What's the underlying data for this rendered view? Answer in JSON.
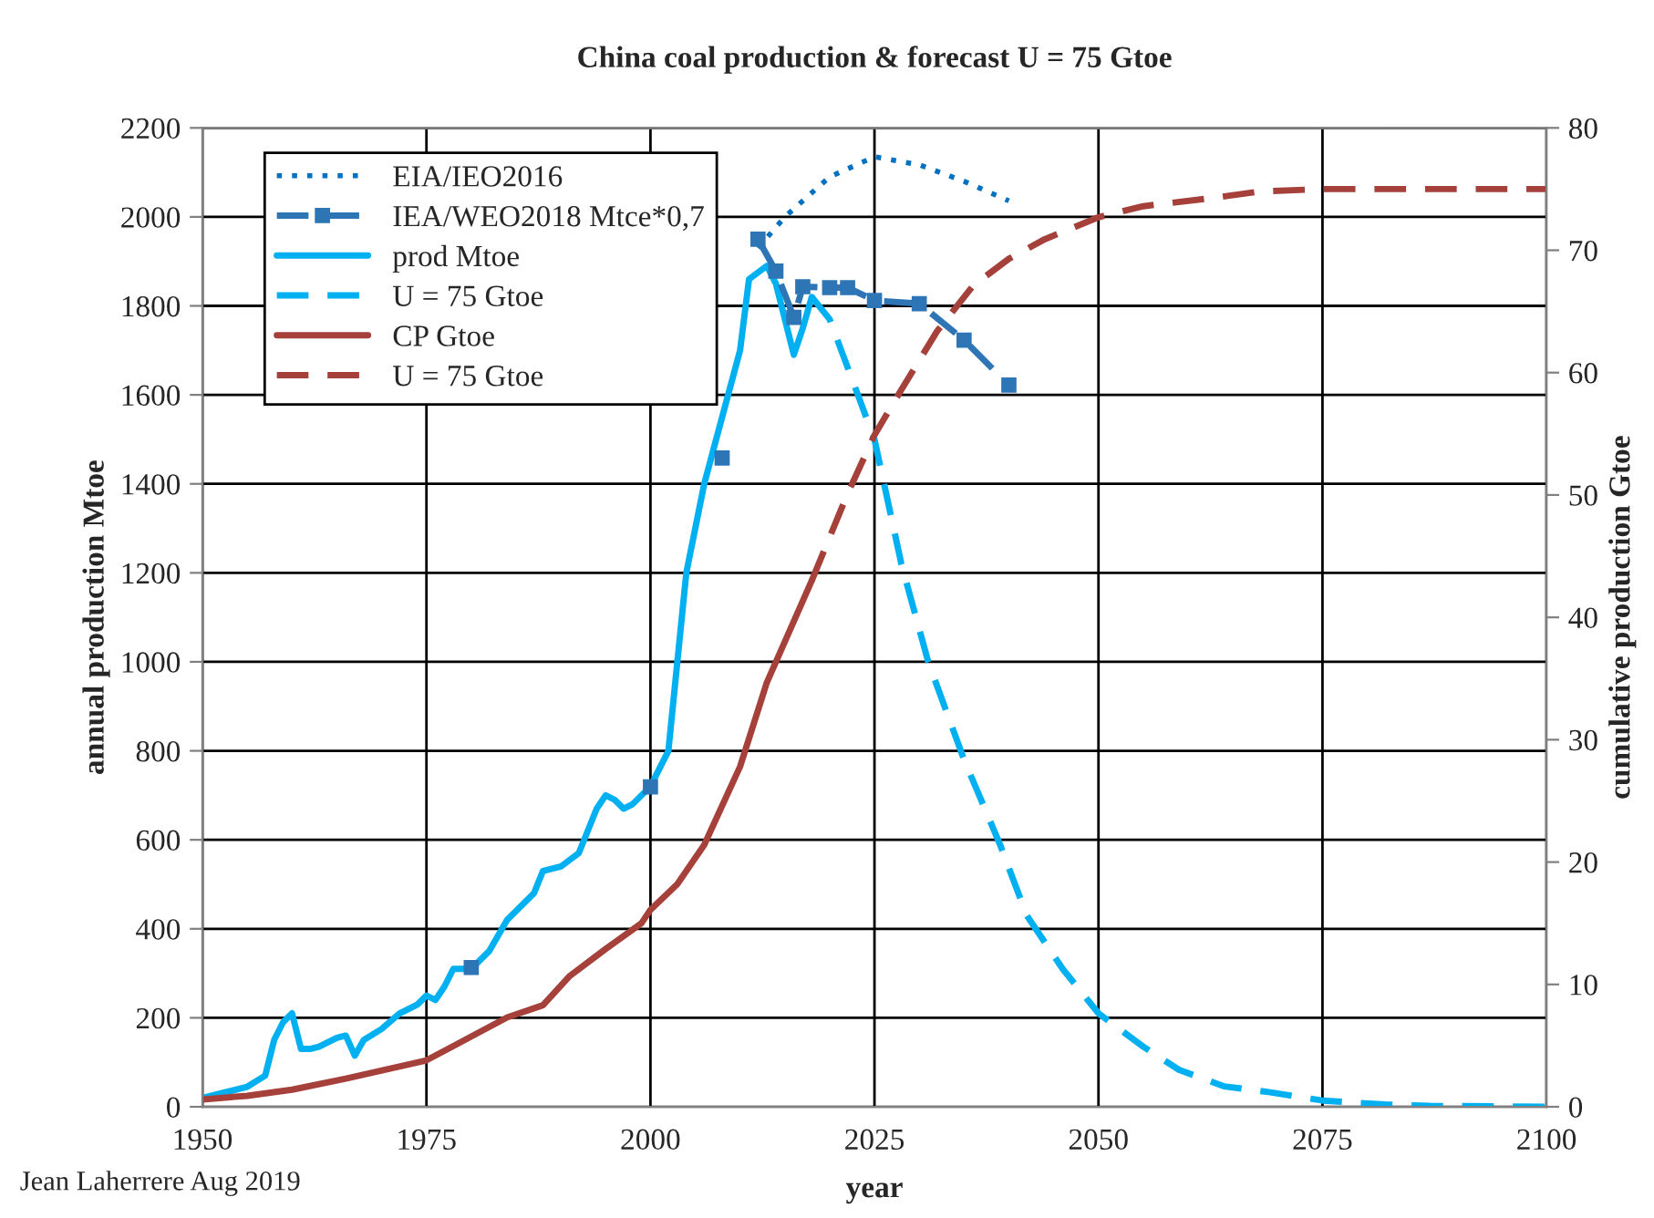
{
  "chart_data": {
    "type": "line",
    "title": "China coal production & forecast U = 75 Gtoe",
    "xlabel": "year",
    "ylabel": "annual production Mtoe",
    "y2label": "cumulative production Gtoe",
    "annotations": [
      "Jean Laherrere Aug 2019"
    ],
    "xlim": [
      1950,
      2100
    ],
    "xticks": [
      1950,
      1975,
      2000,
      2025,
      2050,
      2075,
      2100
    ],
    "ylim": [
      0,
      2200
    ],
    "yticks": [
      0,
      200,
      400,
      600,
      800,
      1000,
      1200,
      1400,
      1600,
      1800,
      2000,
      2200
    ],
    "y2lim": [
      0,
      80
    ],
    "y2ticks": [
      0,
      10,
      20,
      30,
      40,
      50,
      60,
      70,
      80
    ],
    "grid": true,
    "legend": "top left",
    "series": [
      {
        "name": "EIA/IEO2016",
        "color": "#0070c0",
        "line_style": "dotted",
        "marker": "none",
        "x": [
          2012,
          2015,
          2020,
          2025,
          2030,
          2035,
          2040
        ],
        "values": [
          1930,
          2000,
          2090,
          2135,
          2117,
          2080,
          2036
        ]
      },
      {
        "name": "IEA/WEO2018 Mtce*0,7",
        "color": "#2e75b6",
        "line_style": "dashed",
        "marker": "square",
        "x": [
          1980,
          1990,
          2000,
          2005,
          2008,
          2010,
          2012,
          2014,
          2016,
          2017,
          2020,
          2022,
          2025,
          2030,
          2035,
          2040
        ],
        "values": [
          313,
          null,
          719,
          null,
          1458,
          null,
          1950,
          1878,
          1774,
          1843,
          1841,
          1841,
          1812,
          1805,
          1723,
          1622
        ]
      },
      {
        "name": "prod Mtoe",
        "color": "#00b0f0",
        "line_style": "solid",
        "marker": "none",
        "x": [
          1950,
          1952,
          1955,
          1957,
          1958,
          1959,
          1960,
          1961,
          1962,
          1963,
          1965,
          1966,
          1967,
          1968,
          1970,
          1972,
          1974,
          1975,
          1976,
          1977,
          1978,
          1980,
          1982,
          1984,
          1985,
          1987,
          1988,
          1990,
          1992,
          1994,
          1995,
          1996,
          1997,
          1998,
          2000,
          2002,
          2003,
          2004,
          2006,
          2008,
          2010,
          2011,
          2013,
          2014,
          2015,
          2016,
          2017,
          2018
        ],
        "values": [
          20,
          30,
          45,
          70,
          150,
          190,
          210,
          130,
          130,
          135,
          155,
          160,
          115,
          150,
          175,
          210,
          230,
          250,
          240,
          270,
          310,
          310,
          350,
          420,
          440,
          480,
          530,
          540,
          570,
          670,
          700,
          690,
          670,
          680,
          720,
          800,
          1000,
          1200,
          1400,
          1550,
          1700,
          1860,
          1890,
          1850,
          1770,
          1690,
          1750,
          1820
        ]
      },
      {
        "name": "U = 75 Gtoe",
        "color": "#00b0f0",
        "line_style": "dashed",
        "marker": "none",
        "x": [
          2018,
          2020,
          2025,
          2028,
          2031,
          2035,
          2039,
          2042,
          2046,
          2050,
          2055,
          2059,
          2064,
          2069,
          2075,
          2082,
          2087,
          2100
        ],
        "values": [
          1820,
          1770,
          1500,
          1220,
          1000,
          780,
          590,
          430,
          310,
          210,
          135,
          83,
          46,
          33,
          14,
          5,
          2,
          0
        ]
      },
      {
        "name": "CP Gtoe",
        "color": "#a5403a",
        "line_style": "solid",
        "marker": "none",
        "axis": "y2",
        "x": [
          1950,
          1955,
          1960,
          1966,
          1975,
          1984,
          1988,
          1991,
          1995,
          1999,
          2000,
          2003,
          2006,
          2010,
          2013,
          2018
        ],
        "values": [
          0.6,
          0.9,
          1.4,
          2.3,
          3.8,
          7.3,
          8.3,
          10.7,
          12.9,
          15,
          16.1,
          18.2,
          21.4,
          27.8,
          34.7,
          43
        ]
      },
      {
        "name": "U = 75 Gtoe",
        "color": "#a5403a",
        "line_style": "dashed",
        "marker": "none",
        "axis": "y2",
        "x": [
          2018,
          2022,
          2025,
          2028,
          2032,
          2036,
          2040,
          2044,
          2050,
          2055,
          2063,
          2068,
          2075,
          2100
        ],
        "values": [
          43,
          50.1,
          54.9,
          58.6,
          63.4,
          67.1,
          69.3,
          70.9,
          72.7,
          73.6,
          74.3,
          74.8,
          75,
          75
        ]
      }
    ]
  }
}
